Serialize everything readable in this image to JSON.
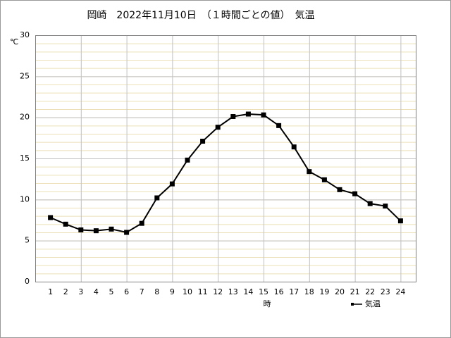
{
  "chart_data": {
    "type": "line",
    "title": "岡崎　2022年11月10日　（１時間ごとの値）　気温",
    "y_label": "℃",
    "x_label": "時",
    "x": [
      1,
      2,
      3,
      4,
      5,
      6,
      7,
      8,
      9,
      10,
      11,
      12,
      13,
      14,
      15,
      16,
      17,
      18,
      19,
      20,
      21,
      22,
      23,
      24
    ],
    "series": [
      {
        "name": "気温",
        "color": "#000000",
        "values": [
          7.8,
          7.0,
          6.3,
          6.2,
          6.4,
          6.0,
          7.1,
          10.2,
          11.9,
          14.8,
          17.1,
          18.8,
          20.1,
          20.4,
          20.3,
          19.0,
          16.4,
          13.4,
          12.4,
          11.2,
          10.7,
          9.5,
          9.2,
          7.4
        ]
      }
    ],
    "xlim": [
      0,
      25
    ],
    "xticks": [
      1,
      2,
      3,
      4,
      5,
      6,
      7,
      8,
      9,
      10,
      11,
      12,
      13,
      14,
      15,
      16,
      17,
      18,
      19,
      20,
      21,
      22,
      23,
      24
    ],
    "ylim": [
      0,
      30
    ],
    "yticks": [
      0,
      5,
      10,
      15,
      20,
      25,
      30
    ],
    "grid": true,
    "legend": "bottom-right"
  }
}
